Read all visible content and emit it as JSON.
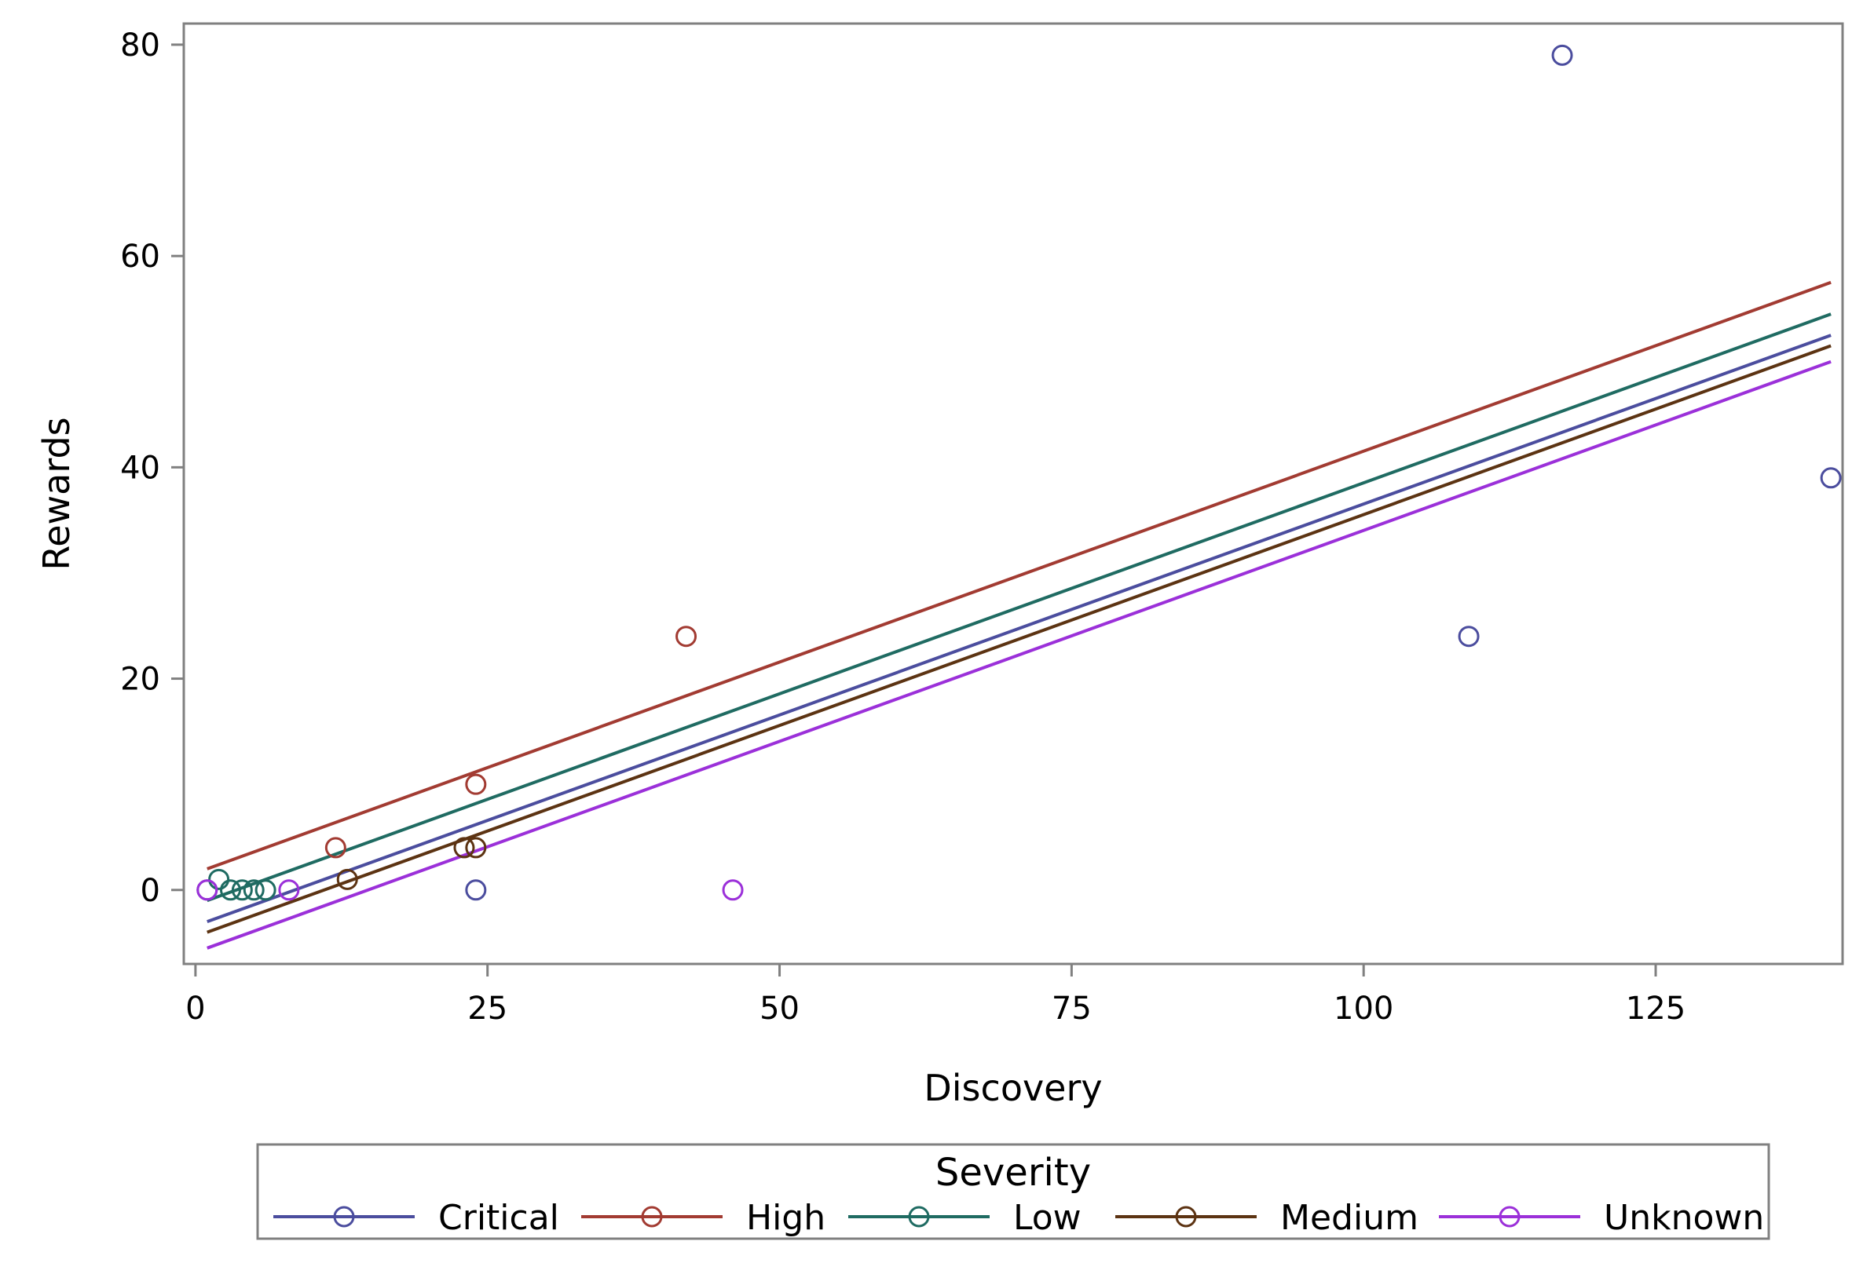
{
  "chart_data": {
    "type": "scatter",
    "title": "",
    "xlabel": "Discovery",
    "ylabel": "Rewards",
    "xlim": [
      -1,
      141
    ],
    "ylim": [
      -7,
      82
    ],
    "xticks": [
      0,
      25,
      50,
      75,
      100,
      125
    ],
    "yticks": [
      0,
      20,
      40,
      60,
      80
    ],
    "xtick_labels": [
      "0",
      "25",
      "50",
      "75",
      "100",
      "125"
    ],
    "ytick_labels": [
      "0",
      "20",
      "40",
      "60",
      "80"
    ],
    "grid": false,
    "legend": {
      "title": "Severity",
      "placement": "bottom"
    },
    "series": [
      {
        "name": "Critical",
        "color": "#4b4d9e",
        "points": [
          [
            1,
            0
          ],
          [
            24,
            0
          ],
          [
            109,
            24
          ],
          [
            117,
            79
          ],
          [
            140,
            39
          ]
        ],
        "fit_line": [
          [
            1,
            -3
          ],
          [
            140,
            52.5
          ]
        ]
      },
      {
        "name": "High",
        "color": "#a23b32",
        "points": [
          [
            12,
            4
          ],
          [
            24,
            10
          ],
          [
            42,
            24
          ]
        ],
        "fit_line": [
          [
            1,
            2
          ],
          [
            140,
            57.5
          ]
        ]
      },
      {
        "name": "Low",
        "color": "#1f6b62",
        "points": [
          [
            2,
            1
          ],
          [
            3,
            0
          ],
          [
            4,
            0
          ],
          [
            5,
            0
          ],
          [
            6,
            0
          ]
        ],
        "fit_line": [
          [
            1,
            -1
          ],
          [
            140,
            54.5
          ]
        ]
      },
      {
        "name": "Medium",
        "color": "#5c3312",
        "points": [
          [
            13,
            1
          ],
          [
            23,
            4
          ],
          [
            24,
            4
          ]
        ],
        "fit_line": [
          [
            1,
            -4
          ],
          [
            140,
            51.5
          ]
        ]
      },
      {
        "name": "Unknown",
        "color": "#9b30d9",
        "points": [
          [
            1,
            0
          ],
          [
            8,
            0
          ],
          [
            46,
            0
          ]
        ],
        "fit_line": [
          [
            1,
            -5.5
          ],
          [
            140,
            50
          ]
        ]
      }
    ]
  }
}
